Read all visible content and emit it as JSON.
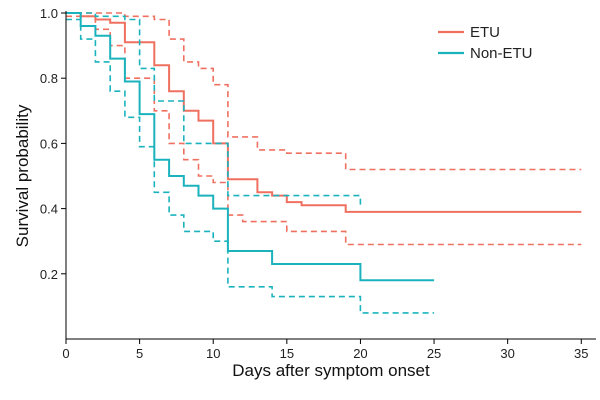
{
  "chart_data": {
    "type": "line",
    "xlabel": "Days after symptom onset",
    "ylabel": "Survival probability",
    "xlim": [
      0,
      36
    ],
    "ylim": [
      0,
      1.0
    ],
    "xticks": [
      0,
      5,
      10,
      15,
      20,
      25,
      30,
      35
    ],
    "yticks": [
      0.2,
      0.4,
      0.6,
      0.8,
      1.0
    ],
    "ytick_labels": [
      "0.2",
      "0.4",
      "0.6",
      "0.8",
      "1.0"
    ],
    "grid": false,
    "legend_position": "top-right",
    "step": true,
    "series": [
      {
        "name": "ETU",
        "color": "#f07060",
        "estimate": {
          "x": [
            0,
            1,
            2,
            3,
            4,
            6,
            7,
            8,
            9,
            10,
            11,
            13,
            14,
            15,
            16,
            19,
            35
          ],
          "y": [
            1.0,
            0.99,
            0.98,
            0.97,
            0.91,
            0.84,
            0.76,
            0.7,
            0.67,
            0.6,
            0.49,
            0.45,
            0.44,
            0.42,
            0.41,
            0.39,
            0.39
          ]
        },
        "ci_upper": {
          "x": [
            0,
            4,
            6,
            7,
            8,
            9,
            10,
            11,
            13,
            15,
            19,
            35
          ],
          "y": [
            1.0,
            0.99,
            0.98,
            0.92,
            0.85,
            0.83,
            0.78,
            0.62,
            0.58,
            0.57,
            0.52,
            0.52
          ]
        },
        "ci_lower": {
          "x": [
            0,
            2,
            3,
            4,
            6,
            7,
            8,
            9,
            10,
            11,
            12,
            15,
            19,
            35
          ],
          "y": [
            0.99,
            0.95,
            0.9,
            0.8,
            0.7,
            0.6,
            0.55,
            0.5,
            0.48,
            0.38,
            0.36,
            0.33,
            0.29,
            0.29
          ]
        }
      },
      {
        "name": "Non-ETU",
        "color": "#1ab3bd",
        "estimate": {
          "x": [
            0,
            1,
            2,
            3,
            4,
            5,
            6,
            7,
            8,
            9,
            10,
            11,
            14,
            20,
            25
          ],
          "y": [
            1.0,
            0.96,
            0.93,
            0.86,
            0.79,
            0.69,
            0.55,
            0.5,
            0.47,
            0.44,
            0.4,
            0.27,
            0.23,
            0.18,
            0.18
          ]
        },
        "ci_upper": {
          "x": [
            0,
            2,
            4,
            5,
            6,
            8,
            11,
            20
          ],
          "y": [
            1.0,
            0.99,
            0.98,
            0.83,
            0.73,
            0.6,
            0.44,
            0.4
          ]
        },
        "ci_lower": {
          "x": [
            0,
            1,
            2,
            3,
            4,
            5,
            6,
            7,
            8,
            10,
            11,
            14,
            20,
            25
          ],
          "y": [
            0.98,
            0.92,
            0.85,
            0.76,
            0.68,
            0.59,
            0.45,
            0.38,
            0.33,
            0.3,
            0.16,
            0.13,
            0.08,
            0.08
          ]
        }
      }
    ]
  }
}
